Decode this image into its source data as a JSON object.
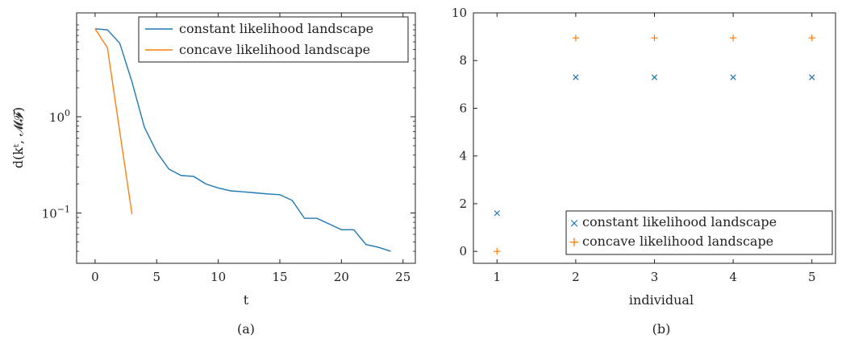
{
  "chart_data": [
    {
      "type": "line",
      "caption": "(a)",
      "xlabel": "t",
      "ylabel": "d(kᵗ, 𝓜𝓕)",
      "yscale": "log",
      "xlim": [
        -1.5,
        26
      ],
      "ylim": [
        0.03,
        12
      ],
      "xticks": [
        0,
        5,
        10,
        15,
        20,
        25
      ],
      "yticks": [
        {
          "value": 1,
          "base": "10",
          "exp": "0"
        },
        {
          "value": 0.1,
          "base": "10",
          "exp": "−1"
        }
      ],
      "grid": false,
      "legend_position": "top-right",
      "series": [
        {
          "name": "constant likelihood landscape",
          "color": "#1f77b4",
          "x": [
            0,
            1,
            2,
            3,
            4,
            5,
            6,
            7,
            8,
            9,
            10,
            11,
            12,
            13,
            14,
            15,
            16,
            17,
            18,
            19,
            20,
            21,
            22,
            23,
            24
          ],
          "y": [
            8.2,
            8.0,
            5.8,
            2.3,
            0.78,
            0.43,
            0.285,
            0.245,
            0.24,
            0.2,
            0.182,
            0.17,
            0.166,
            0.162,
            0.158,
            0.155,
            0.135,
            0.088,
            0.088,
            0.077,
            0.067,
            0.067,
            0.047,
            0.044,
            0.04
          ]
        },
        {
          "name": "concave likelihood landscape",
          "color": "#ff7f0e",
          "x": [
            0,
            1,
            2,
            3
          ],
          "y": [
            8.2,
            5.2,
            0.7,
            0.097
          ]
        }
      ]
    },
    {
      "type": "scatter",
      "caption": "(b)",
      "xlabel": "individual",
      "ylabel": "",
      "xlim": [
        0.7,
        5.3
      ],
      "ylim": [
        -0.5,
        10
      ],
      "xticks": [
        1,
        2,
        3,
        4,
        5
      ],
      "yticks": [
        0,
        2,
        4,
        6,
        8,
        10
      ],
      "grid": false,
      "legend_position": "bottom-right",
      "series": [
        {
          "name": "constant likelihood landscape",
          "color": "#1f77b4",
          "marker": "×",
          "x": [
            1,
            2,
            3,
            4,
            5
          ],
          "y": [
            1.6,
            7.3,
            7.3,
            7.3,
            7.3
          ]
        },
        {
          "name": "concave likelihood landscape",
          "color": "#ff7f0e",
          "marker": "+",
          "x": [
            1,
            2,
            3,
            4,
            5
          ],
          "y": [
            0,
            8.95,
            8.95,
            8.95,
            8.95
          ]
        }
      ]
    }
  ]
}
